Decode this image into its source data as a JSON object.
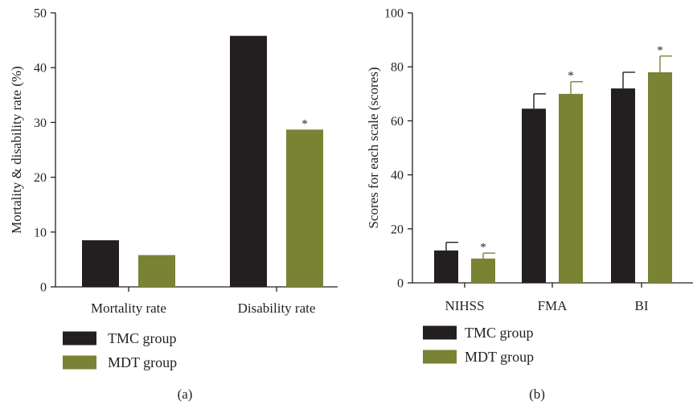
{
  "colors": {
    "tmc": "#231f20",
    "mdt": "#7a8234",
    "axis": "#231f20"
  },
  "chart_data": [
    {
      "type": "bar",
      "panel_label": "(a)",
      "categories": [
        "Mortality rate",
        "Disability rate"
      ],
      "series": [
        {
          "name": "TMC group",
          "values": [
            8.5,
            45.8
          ]
        },
        {
          "name": "MDT group",
          "values": [
            5.8,
            28.7
          ]
        }
      ],
      "significance": [
        [
          false,
          false
        ],
        [
          false,
          true
        ]
      ],
      "ylabel": "Mortality & disability rate (%)",
      "ylim": [
        0,
        50
      ],
      "yticks": [
        0,
        10,
        20,
        30,
        40,
        50
      ],
      "legend_position": "bottom-left",
      "grid": false
    },
    {
      "type": "bar",
      "panel_label": "(b)",
      "categories": [
        "NIHSS",
        "FMA",
        "BI"
      ],
      "series": [
        {
          "name": "TMC group",
          "values": [
            12,
            64.5,
            72
          ],
          "errors": [
            3,
            5.5,
            6
          ]
        },
        {
          "name": "MDT group",
          "values": [
            9,
            70,
            78
          ],
          "errors": [
            2,
            4.5,
            6
          ]
        }
      ],
      "significance": [
        [
          false,
          false,
          false
        ],
        [
          true,
          true,
          true
        ]
      ],
      "ylabel": "Scores for each scale (scores)",
      "ylim": [
        0,
        100
      ],
      "yticks": [
        0,
        20,
        40,
        60,
        80,
        100
      ],
      "legend_position": "bottom-left",
      "grid": false
    }
  ],
  "star_symbol": "*"
}
